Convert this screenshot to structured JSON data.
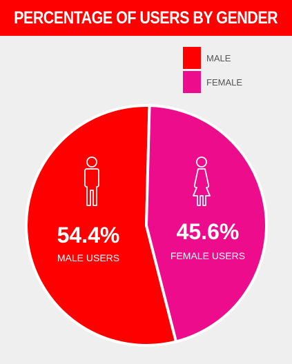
{
  "header": {
    "title": "PERCENTAGE OF USERS BY GENDER"
  },
  "colors": {
    "banner": "#ff0000",
    "male": "#ff0000",
    "female": "#ec0c8c",
    "background": "#efefef"
  },
  "icons": {
    "male": "male-figure-icon",
    "female": "female-figure-icon"
  },
  "legend": [
    {
      "label": "MALE",
      "color": "#ff0000"
    },
    {
      "label": "FEMALE",
      "color": "#ec0c8c"
    }
  ],
  "chart_data": {
    "type": "pie",
    "title": "PERCENTAGE OF USERS BY GENDER",
    "legend_position": "top-right",
    "slices": [
      {
        "label": "MALE",
        "value": 54.4,
        "value_label": "54.4%",
        "caption": "MALE USERS",
        "color": "#ff0000"
      },
      {
        "label": "FEMALE",
        "value": 45.6,
        "value_label": "45.6%",
        "caption": "FEMALE USERS",
        "color": "#ec0c8c"
      }
    ]
  }
}
